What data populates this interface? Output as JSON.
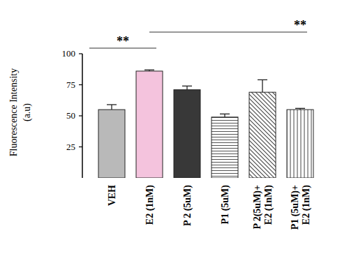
{
  "chart_data": {
    "type": "bar",
    "ylabel": "Fluorescence Intensity\n(a.u)",
    "categories": [
      "VEH",
      "E2 (1nM)",
      "P 2 (5uM)",
      "P1 (5uM)",
      "P 2(5uM)+\nE2 (1nM)",
      "P1 (5uM)+\nE2 (1nM)"
    ],
    "values": [
      55,
      86,
      71,
      49,
      69,
      55
    ],
    "errors": [
      4,
      1,
      3,
      2.5,
      10,
      1
    ],
    "colors": [
      "#b9b9b9",
      "#f4c3dd",
      "#383838",
      "#ffffff",
      "#ffffff",
      "#ffffff"
    ],
    "ylim": [
      0,
      100
    ],
    "yticks": [
      25,
      50,
      75,
      100
    ],
    "grid": false,
    "annotations": [
      {
        "text": "**",
        "between": [
          "VEH",
          "E2 (1nM)"
        ]
      },
      {
        "text": "**",
        "between": [
          "E2 (1nM)",
          "P1 (5uM)+\nE2 (1nM)"
        ]
      }
    ]
  }
}
